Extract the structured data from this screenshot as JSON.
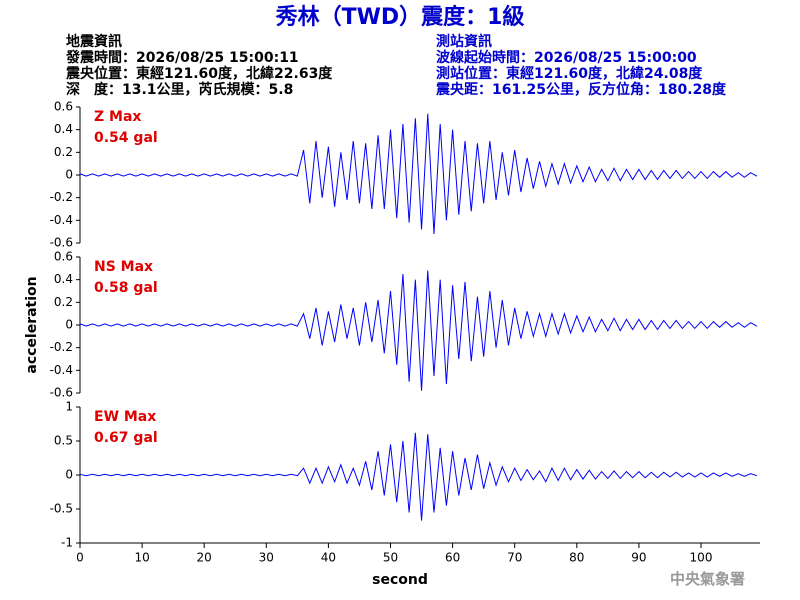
{
  "header": {
    "title": "秀林（TWD）震度：1級",
    "left": [
      "地震資訊",
      "發震時間：2026/08/25 15:00:11",
      "震央位置：東經121.60度，北緯22.63度",
      "深　度：13.1公里，芮氏規模：5.8"
    ],
    "right": [
      "測站資訊",
      "波線起始時間：2026/08/25 15:00:00",
      "測站位置：東經121.60度，北緯24.08度",
      "震央距：161.25公里，反方位角：180.28度"
    ],
    "footer": "中央氣象署"
  },
  "chart_data": [
    {
      "type": "line",
      "label": "Z Max",
      "max_label": "0.54 gal",
      "color": "#0000ff",
      "xlim": [
        0,
        109.5
      ],
      "ylim": [
        -0.6,
        0.6
      ],
      "yticks": [
        0.6,
        0.4,
        0.2,
        0,
        -0.2,
        -0.4,
        -0.6
      ],
      "x": [
        0,
        1,
        2,
        3,
        4,
        5,
        6,
        7,
        8,
        9,
        10,
        11,
        12,
        13,
        14,
        15,
        16,
        17,
        18,
        19,
        20,
        21,
        22,
        23,
        24,
        25,
        26,
        27,
        28,
        29,
        30,
        31,
        32,
        33,
        34,
        35,
        36,
        37,
        38,
        39,
        40,
        41,
        42,
        43,
        44,
        45,
        46,
        47,
        48,
        49,
        50,
        51,
        52,
        53,
        54,
        55,
        56,
        57,
        58,
        59,
        60,
        61,
        62,
        63,
        64,
        65,
        66,
        67,
        68,
        69,
        70,
        71,
        72,
        73,
        74,
        75,
        76,
        77,
        78,
        79,
        80,
        81,
        82,
        83,
        84,
        85,
        86,
        87,
        88,
        89,
        90,
        91,
        92,
        93,
        94,
        95,
        96,
        97,
        98,
        99,
        100,
        101,
        102,
        103,
        104,
        105,
        106,
        107,
        108,
        109
      ],
      "values": [
        0.01,
        -0.01,
        0.01,
        -0.01,
        0.01,
        -0.01,
        0.01,
        -0.01,
        0.01,
        -0.01,
        0.01,
        -0.01,
        0.01,
        -0.01,
        0.01,
        -0.01,
        0.01,
        -0.01,
        0.01,
        -0.01,
        0.01,
        -0.01,
        0.01,
        -0.01,
        0.01,
        -0.01,
        0.01,
        -0.01,
        0.01,
        -0.01,
        0.01,
        -0.01,
        0.01,
        -0.01,
        0.01,
        -0.01,
        0.22,
        -0.25,
        0.3,
        -0.2,
        0.25,
        -0.28,
        0.2,
        -0.22,
        0.3,
        -0.25,
        0.28,
        -0.3,
        0.35,
        -0.3,
        0.4,
        -0.38,
        0.45,
        -0.42,
        0.5,
        -0.48,
        0.54,
        -0.52,
        0.45,
        -0.4,
        0.4,
        -0.35,
        0.3,
        -0.32,
        0.28,
        -0.25,
        0.3,
        -0.22,
        0.2,
        -0.18,
        0.22,
        -0.15,
        0.15,
        -0.12,
        0.12,
        -0.1,
        0.1,
        -0.08,
        0.1,
        -0.07,
        0.08,
        -0.06,
        0.07,
        -0.06,
        0.05,
        -0.05,
        0.06,
        -0.05,
        0.05,
        -0.04,
        0.05,
        -0.04,
        0.04,
        -0.04,
        0.04,
        -0.03,
        0.04,
        -0.03,
        0.03,
        -0.03,
        0.03,
        -0.03,
        0.03,
        -0.02,
        0.03,
        -0.02,
        0.02,
        -0.02,
        0.02,
        -0.01
      ]
    },
    {
      "type": "line",
      "label": "NS Max",
      "max_label": "0.58 gal",
      "color": "#0000ff",
      "ylabel": "acceleration",
      "xlim": [
        0,
        109.5
      ],
      "ylim": [
        -0.6,
        0.6
      ],
      "yticks": [
        0.6,
        0.4,
        0.2,
        0,
        -0.2,
        -0.4,
        -0.6
      ],
      "x": [
        0,
        1,
        2,
        3,
        4,
        5,
        6,
        7,
        8,
        9,
        10,
        11,
        12,
        13,
        14,
        15,
        16,
        17,
        18,
        19,
        20,
        21,
        22,
        23,
        24,
        25,
        26,
        27,
        28,
        29,
        30,
        31,
        32,
        33,
        34,
        35,
        36,
        37,
        38,
        39,
        40,
        41,
        42,
        43,
        44,
        45,
        46,
        47,
        48,
        49,
        50,
        51,
        52,
        53,
        54,
        55,
        56,
        57,
        58,
        59,
        60,
        61,
        62,
        63,
        64,
        65,
        66,
        67,
        68,
        69,
        70,
        71,
        72,
        73,
        74,
        75,
        76,
        77,
        78,
        79,
        80,
        81,
        82,
        83,
        84,
        85,
        86,
        87,
        88,
        89,
        90,
        91,
        92,
        93,
        94,
        95,
        96,
        97,
        98,
        99,
        100,
        101,
        102,
        103,
        104,
        105,
        106,
        107,
        108,
        109
      ],
      "values": [
        0.01,
        -0.01,
        0.01,
        -0.01,
        0.01,
        -0.01,
        0.01,
        -0.01,
        0.01,
        -0.01,
        0.01,
        -0.01,
        0.01,
        -0.01,
        0.01,
        -0.01,
        0.01,
        -0.01,
        0.01,
        -0.01,
        0.01,
        -0.01,
        0.01,
        -0.01,
        0.01,
        -0.01,
        0.01,
        -0.01,
        0.01,
        -0.01,
        0.01,
        -0.01,
        0.01,
        -0.01,
        0.01,
        -0.01,
        0.1,
        -0.12,
        0.15,
        -0.18,
        0.12,
        -0.15,
        0.18,
        -0.12,
        0.15,
        -0.18,
        0.2,
        -0.15,
        0.22,
        -0.25,
        0.3,
        -0.35,
        0.45,
        -0.5,
        0.4,
        -0.58,
        0.48,
        -0.45,
        0.4,
        -0.52,
        0.35,
        -0.3,
        0.38,
        -0.32,
        0.25,
        -0.28,
        0.3,
        -0.2,
        0.22,
        -0.18,
        0.15,
        -0.12,
        0.12,
        -0.1,
        0.1,
        -0.1,
        0.1,
        -0.08,
        0.1,
        -0.07,
        0.08,
        -0.06,
        0.07,
        -0.06,
        0.05,
        -0.05,
        0.06,
        -0.05,
        0.05,
        -0.04,
        0.05,
        -0.04,
        0.04,
        -0.04,
        0.04,
        -0.03,
        0.04,
        -0.03,
        0.03,
        -0.03,
        0.03,
        -0.03,
        0.03,
        -0.02,
        0.03,
        -0.02,
        0.02,
        -0.02,
        0.02,
        -0.01
      ]
    },
    {
      "type": "line",
      "label": "EW Max",
      "max_label": "0.67 gal",
      "color": "#0000ff",
      "xlabel": "second",
      "xlim": [
        0,
        109.5
      ],
      "xticks": [
        0,
        10,
        20,
        30,
        40,
        50,
        60,
        70,
        80,
        90,
        100
      ],
      "ylim": [
        -1,
        1
      ],
      "yticks": [
        1,
        0.5,
        0,
        -0.5,
        -1
      ],
      "x": [
        0,
        1,
        2,
        3,
        4,
        5,
        6,
        7,
        8,
        9,
        10,
        11,
        12,
        13,
        14,
        15,
        16,
        17,
        18,
        19,
        20,
        21,
        22,
        23,
        24,
        25,
        26,
        27,
        28,
        29,
        30,
        31,
        32,
        33,
        34,
        35,
        36,
        37,
        38,
        39,
        40,
        41,
        42,
        43,
        44,
        45,
        46,
        47,
        48,
        49,
        50,
        51,
        52,
        53,
        54,
        55,
        56,
        57,
        58,
        59,
        60,
        61,
        62,
        63,
        64,
        65,
        66,
        67,
        68,
        69,
        70,
        71,
        72,
        73,
        74,
        75,
        76,
        77,
        78,
        79,
        80,
        81,
        82,
        83,
        84,
        85,
        86,
        87,
        88,
        89,
        90,
        91,
        92,
        93,
        94,
        95,
        96,
        97,
        98,
        99,
        100,
        101,
        102,
        103,
        104,
        105,
        106,
        107,
        108,
        109
      ],
      "values": [
        0.01,
        -0.01,
        0.01,
        -0.01,
        0.01,
        -0.01,
        0.01,
        -0.01,
        0.01,
        -0.01,
        0.01,
        -0.01,
        0.01,
        -0.01,
        0.01,
        -0.01,
        0.01,
        -0.01,
        0.01,
        -0.01,
        0.01,
        -0.01,
        0.01,
        -0.01,
        0.01,
        -0.01,
        0.01,
        -0.01,
        0.01,
        -0.01,
        0.01,
        -0.01,
        0.01,
        -0.01,
        0.01,
        -0.01,
        0.1,
        -0.12,
        0.1,
        -0.12,
        0.12,
        -0.1,
        0.15,
        -0.12,
        0.1,
        -0.15,
        0.2,
        -0.22,
        0.35,
        -0.3,
        0.45,
        -0.4,
        0.5,
        -0.55,
        0.62,
        -0.67,
        0.6,
        -0.55,
        0.4,
        -0.45,
        0.35,
        -0.3,
        0.25,
        -0.22,
        0.3,
        -0.2,
        0.18,
        -0.15,
        0.12,
        -0.1,
        0.1,
        -0.08,
        0.08,
        -0.07,
        0.06,
        -0.1,
        0.1,
        -0.08,
        0.1,
        -0.07,
        0.08,
        -0.06,
        0.07,
        -0.06,
        0.05,
        -0.05,
        0.06,
        -0.05,
        0.05,
        -0.04,
        0.05,
        -0.04,
        0.04,
        -0.04,
        0.04,
        -0.03,
        0.04,
        -0.03,
        0.03,
        -0.03,
        0.03,
        -0.03,
        0.03,
        -0.02,
        0.03,
        -0.02,
        0.02,
        -0.02,
        0.02,
        -0.01
      ]
    }
  ]
}
